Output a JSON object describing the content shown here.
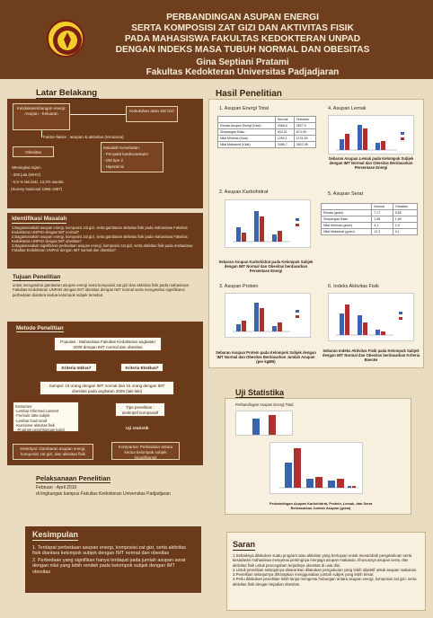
{
  "header": {
    "title_lines": [
      "PERBANDINGAN ASUPAN ENERGI",
      "SERTA KOMPOSISI ZAT GIZI DAN AKTIVITAS FISIK",
      "PADA MAHASISWA FAKULTAS KEDOKTERAN UNPAD",
      "DENGAN INDEKS MASA TUBUH NORMAL DAN OBESITAS"
    ],
    "author": "Gina Septiani Pratami",
    "faculty": "Fakultas Kedokteran Universitas Padjadjaran"
  },
  "latar": {
    "title": "Latar Belakang",
    "box1": "Ketidakseimbangan energi: Asupan - Keluaran",
    "box2": "Kebutuhan akan Zat Gizi",
    "faktor": "Faktor-faktor : asupan & aktivitas (terutama)",
    "obesitas": "Obesitas",
    "masalah": [
      "Masalah Kesehatan:",
      "- Penyakit kardiovaskuler",
      "- DM tipe 2",
      "- Hipertensi"
    ],
    "stats": [
      "-Meningkat tajam",
      "- 300 juta (WHO)",
      "- 6,8 % laki-laki, 13,3% wanita",
      "(Survey Nasional 1996-1997)"
    ]
  },
  "identifikasi": {
    "title": "Identifikasi Masalah",
    "items": [
      "1.Bagaimanakah asupan energi, komposisi zat gizi, serta gambaran aktivitas fisik pada mahasiswa Fakultas Kedokteran UNPAD dengan IMT normal?",
      "2.Bagaimanakah asupan energi, komposisi zat gizi, serta gambaran aktivitas fisik pada mahasiswa Fakultas Kedokteran UNPAD dengan IMT obesitas?",
      "3.Bagaimanakah signifikansi perbedaan asupan energi, komposisi zat gizi, serta aktivitas fisik pada mahasiswa Fakultas Kedokteran UNPAD dengan IMT normal dan obesitas?"
    ]
  },
  "tujuan": {
    "title": "Tujuan Penelitian",
    "text": "untuk mengetahui gambaran asupan energi serta komposisi zat gizi dan aktivitas fisik pada mahasiswa Fakultas Kedokteran UNPAD dengan IMT obesitas dengan IMT normal serta mengetahui signifikansi perbedaan diantara kedua kelompok subjek tersebut."
  },
  "metode": {
    "title": "Metode Penelitian",
    "populasi": "Populasi : Mahasiswa Fakultas Kedokteran angkatan 2009 dengan IMT normal dan obesitas",
    "inklusi": "Kriteria Inklusi*",
    "eksklusi": "Kriteria Eksklusi*",
    "sampel": "Sampel: 15 orang dengan IMT normal dan 15 orang dengan IMT obesitas pada angkatan 2009 (laki-laki)",
    "instrumen": [
      "Instrumen:",
      "-Lembar Informed consent",
      "-Formulir data subjek",
      "-Lembar food recall",
      "-Kuesioner aktivitas fisik",
      "- Program penghitungan kalori"
    ],
    "tipe": "Tipe penelitian : deskriptif komparatif",
    "uji": "Uji statistik",
    "deskripsi": "Deskripsi: Gambaran asupan energi, komposisi zat gizi, dan aktivitas fisik",
    "komparasi": "Komparasi: Perbedaan antara kedua kelompok subjek (signifikansi)"
  },
  "pelaksanaan": {
    "title": "Pelaksanaan Penelitian",
    "line1": "Februari - April 2010",
    "line2": "di lingkungan kampus Fakultas Kedokteran Universitas Padjadjaran"
  },
  "kesimpulan": {
    "title": "Kesimpulan",
    "items": [
      "1. Terdapat perbedaan asupan energi, komposisi zat gizi, serta aktivitas fisik diantara kelompok subjek dengan IMT normal dan obesitas",
      "2. Perbedaan yang signifikan hanya terdapat pada jumlah asupan serat dengan nilai yang lebih rendah pada kelompok subjek dengan IMT obesitas"
    ]
  },
  "hasil": {
    "title": "Hasil Penelitian",
    "p1_title": "1. Asupan Energi Total",
    "p1_table": {
      "headers": [
        "",
        "Normal",
        "Obesitas"
      ],
      "rows": [
        [
          "Rerata Asupan Energi (Kkal)",
          "2066,6",
          "2527,5"
        ],
        [
          "Simpangan Baku",
          "634,31",
          "674,05"
        ],
        [
          "Nilai Minimal (Kkal)",
          "1290,1",
          "1131,45"
        ],
        [
          "Nilai Maksimal (Kkal)",
          "3456,7",
          "3822,95"
        ]
      ]
    },
    "p2_title": "2. Asupan Karbohidrat",
    "p2_caption": "Sebaran Asupan Karbohidrat pada Kelompok Subjek dengan IMT Normal dan Obesitas berdasarkan Persentase Energi",
    "p3_title": "3. Asupan Protein",
    "p3_caption": "Sebaran Asupan Protein pada Kelompok Subjek dengan IMT Normal dan Obesitas Berdasarkan Jumlah Asupan (per kgBB)",
    "p4_title": "4. Asupan Lemak",
    "p4_caption": "Sebaran Asupan Lemak pada Kelompok Subjek dengan IMT Normal dan Obesitas Berdasarkan Persentase Energi",
    "p5_title": "5. Asupan Serat",
    "p5_table": {
      "headers": [
        "",
        "Normal",
        "Obesitas"
      ],
      "rows": [
        [
          "Rerata (gram)",
          "7,17",
          "5,65"
        ],
        [
          "Simpangan Baku",
          "1,98",
          "1,69"
        ],
        [
          "Nilai Minimal (gram)",
          "4,1",
          "2,9"
        ],
        [
          "Nilai Maksimal (gram)",
          "12,2",
          "9,1"
        ]
      ]
    },
    "p6_title": "6. Indeks Aktivitas Fisik",
    "p6_caption": "Sebaran Indeks Aktivitas Fisik pada Kelompok Subjek dengan IMT Normal dan Obesitas berdasarkan Kriteria Baecke"
  },
  "uji": {
    "title": "Uji Statistika",
    "chart_title": "Perbandingan Asupan Energi Total",
    "caption": "Perbandingan Asupan Karbohidrat, Protein, Lemak, dan Serat Berdasarkan Jumlah Asupan (gram)"
  },
  "saran": {
    "title": "Saran",
    "items": [
      "1.Sebaiknya dilakukan suatu program atau aktivitas yang bertujuan untuk menambah pengetahuan serta kesadaran mahasiswa mengenai pentingnya menjaga asupan makanan, khususnya asupan serat, dan aktivitas fisik untuk pencegahan terjadinya obesitas di usia dini.",
      "2.Untuk penelitian selanjutnya disarankan dilakukan pengukuran yang lebih objektif untuk asupan makanan.",
      "3.Penelitian selanjutnya diharapkan menggunakan jumlah subjek yang lebih besar.",
      "4.Perlu dilakukan penelitian lebih lanjut mengenai hubungan antara asupan energi, komposisi zat gizi, serta aktivitas fisik dengan kejadian obesitas."
    ]
  }
}
